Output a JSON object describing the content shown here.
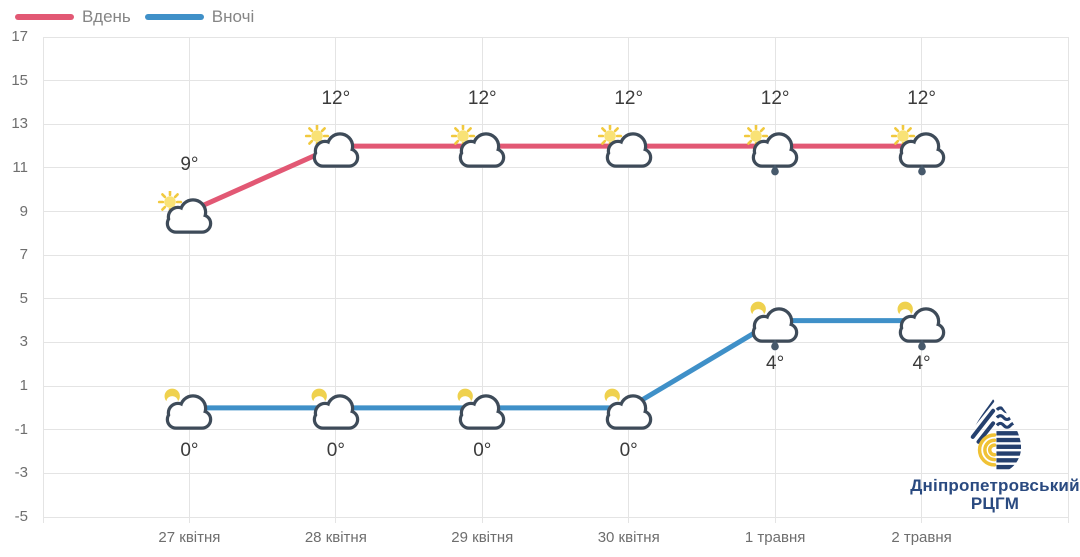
{
  "legend": {
    "items": [
      {
        "label": "Вдень",
        "color": "#e25874"
      },
      {
        "label": "Вночі",
        "color": "#3f90c8"
      }
    ]
  },
  "chart_data": {
    "type": "line",
    "title": "",
    "categories": [
      "27 квітня",
      "28 квітня",
      "29 квітня",
      "30 квітня",
      "1 травня",
      "2 травня"
    ],
    "series": [
      {
        "name": "Вдень",
        "color": "#e25874",
        "label_position": "above",
        "values": [
          9,
          12,
          12,
          12,
          12,
          12
        ],
        "point_labels": [
          "9°",
          "12°",
          "12°",
          "12°",
          "12°",
          "12°"
        ],
        "icons": [
          "sun-cloud",
          "sun-cloud",
          "sun-cloud",
          "sun-cloud",
          "sun-cloud-rain",
          "sun-cloud-rain"
        ]
      },
      {
        "name": "Вночі",
        "color": "#3f90c8",
        "label_position": "below",
        "values": [
          0,
          0,
          0,
          0,
          4,
          4
        ],
        "point_labels": [
          "0°",
          "0°",
          "0°",
          "0°",
          "4°",
          "4°"
        ],
        "icons": [
          "moon-cloud",
          "moon-cloud",
          "moon-cloud",
          "moon-cloud",
          "moon-cloud-rain",
          "moon-cloud-rain"
        ]
      }
    ],
    "ylim": [
      -5,
      17
    ],
    "yticks": [
      17,
      15,
      13,
      11,
      9,
      7,
      5,
      3,
      1,
      -1,
      -3,
      -5
    ],
    "grid": true,
    "legend_position": "top-left"
  },
  "icon_colors": {
    "cloud_outline": "#3e4b59",
    "sun": "#f9e276",
    "sun_rays": "#f1c93e",
    "moon": "#efd14e",
    "raindrop": "#47596b"
  },
  "branding": {
    "org_name_line1": "Дніпропетровський",
    "org_name_line2": "РЦГМ",
    "logo": "water-drop-logo",
    "text_color": "#2a4a80",
    "logo_navy": "#25406e",
    "logo_yellow": "#f0c235"
  }
}
